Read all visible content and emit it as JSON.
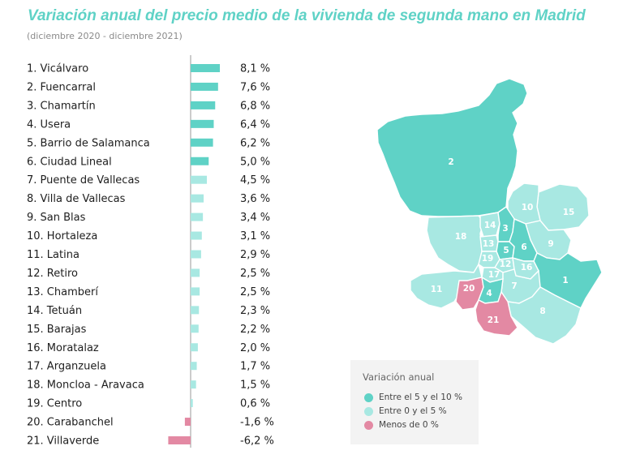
{
  "header": {
    "title": "Variación anual del precio medio de la vivienda de segunda mano en Madrid",
    "subtitle": "(diciembre 2020 - diciembre 2021)"
  },
  "colors": {
    "title": "#5fd2c6",
    "high": "#5fd2c6",
    "mid": "#a8e8e2",
    "negative": "#e389a3",
    "axis": "#999999",
    "map_border": "#ffffff"
  },
  "chart_data": {
    "type": "bar",
    "orientation": "horizontal",
    "categories": [
      "1. Vicálvaro",
      "2. Fuencarral",
      "3. Chamartín",
      "4. Usera",
      "5. Barrio de Salamanca",
      "6. Ciudad Lineal",
      "7. Puente de Vallecas",
      "8. Villa de Vallecas",
      "9. San Blas",
      "10. Hortaleza",
      "11. Latina",
      "12. Retiro",
      "13. Chamberí",
      "14. Tetuán",
      "15. Barajas",
      "16. Moratalaz",
      "17. Arganzuela",
      "18. Moncloa - Aravaca",
      "19. Centro",
      "20. Carabanchel",
      "21. Villaverde"
    ],
    "values": [
      8.1,
      7.6,
      6.8,
      6.4,
      6.2,
      5.0,
      4.5,
      3.6,
      3.4,
      3.1,
      2.9,
      2.5,
      2.5,
      2.3,
      2.2,
      2.0,
      1.7,
      1.5,
      0.6,
      -1.6,
      -6.2
    ],
    "value_labels": [
      "8,1 %",
      "7,6 %",
      "6,8 %",
      "6,4 %",
      "6,2 %",
      "5,0 %",
      "4,5 %",
      "3,6 %",
      "3,4 %",
      "3,1 %",
      "2,9 %",
      "2,5 %",
      "2,5 %",
      "2,3 %",
      "2,2 %",
      "2,0 %",
      "1,7 %",
      "1,5 %",
      "0,6 %",
      "-1,6 %",
      "-6,2 %"
    ],
    "color_groups": [
      "high",
      "high",
      "high",
      "high",
      "high",
      "high",
      "mid",
      "mid",
      "mid",
      "mid",
      "mid",
      "mid",
      "mid",
      "mid",
      "mid",
      "mid",
      "mid",
      "mid",
      "mid",
      "negative",
      "negative"
    ],
    "title": "Variación anual del precio medio de la vivienda de segunda mano en Madrid",
    "xlabel": "",
    "ylabel": "",
    "xlim": [
      -6.2,
      8.1
    ]
  },
  "map": {
    "district_numbers": [
      "1",
      "2",
      "3",
      "4",
      "5",
      "6",
      "7",
      "8",
      "9",
      "10",
      "11",
      "12",
      "13",
      "14",
      "15",
      "16",
      "17",
      "18",
      "19",
      "20",
      "21"
    ]
  },
  "legend": {
    "title": "Variación anual",
    "items": [
      {
        "label": "Entre el 5 y el 10 %",
        "color": "#5fd2c6"
      },
      {
        "label": "Entre 0 y el 5 %",
        "color": "#a8e8e2"
      },
      {
        "label": "Menos de 0 %",
        "color": "#e389a3"
      }
    ]
  }
}
